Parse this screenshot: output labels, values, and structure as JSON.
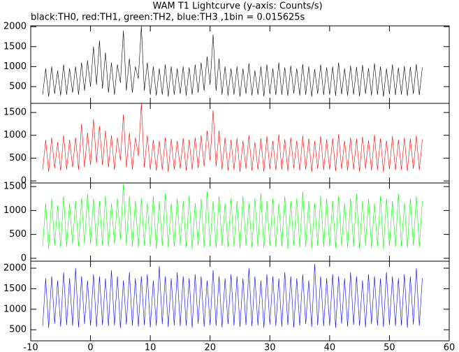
{
  "title": "WAM T1 Lightcurve (y-axis: Counts/s)",
  "subtitle": "black:TH0, red:TH1, green:TH2, blue:TH3 ,1bin = 0.015625s",
  "chart_data": [
    {
      "type": "line",
      "color": "#000000",
      "xlim": [
        -10,
        60
      ],
      "ylim": [
        80,
        2020
      ],
      "yticks": [
        500,
        1000,
        1500,
        2000
      ],
      "x": [
        -8,
        -7.5,
        -7,
        -6.5,
        -6,
        -5.5,
        -5,
        -4.5,
        -4,
        -3.5,
        -3,
        -2.5,
        -2,
        -1.5,
        -1,
        -0.5,
        0,
        0.5,
        1,
        1.5,
        2,
        2.5,
        3,
        3.5,
        4,
        4.5,
        5,
        5.5,
        6,
        6.5,
        7,
        7.5,
        8,
        8.5,
        9,
        9.5,
        10,
        10.5,
        11,
        11.5,
        12,
        12.5,
        13,
        13.5,
        14,
        14.5,
        15,
        15.5,
        16,
        16.5,
        17,
        17.5,
        18,
        18.5,
        19,
        19.5,
        20,
        20.5,
        21,
        21.5,
        22,
        22.5,
        23,
        23.5,
        24,
        24.5,
        25,
        25.5,
        26,
        26.5,
        27,
        27.5,
        28,
        28.5,
        29,
        29.5,
        30,
        30.5,
        31,
        31.5,
        32,
        32.5,
        33,
        33.5,
        34,
        34.5,
        35,
        35.5,
        36,
        36.5,
        37,
        37.5,
        38,
        38.5,
        39,
        39.5,
        40,
        40.5,
        41,
        41.5,
        42,
        42.5,
        43,
        43.5,
        44,
        44.5,
        45,
        45.5,
        46,
        46.5,
        47,
        47.5,
        48,
        48.5,
        49,
        49.5,
        50,
        50.5,
        51,
        51.5,
        52,
        52.5,
        53,
        53.5,
        54,
        54.5,
        55,
        55.5
      ],
      "values": [
        300,
        950,
        250,
        1000,
        320,
        900,
        280,
        1050,
        300,
        950,
        350,
        1000,
        300,
        1100,
        400,
        1150,
        500,
        1500,
        550,
        1650,
        450,
        1350,
        350,
        1100,
        300,
        1050,
        600,
        1900,
        400,
        1200,
        350,
        1000,
        700,
        2010,
        400,
        1100,
        300,
        1000,
        280,
        950,
        300,
        1050,
        250,
        1000,
        300,
        950,
        320,
        1000,
        280,
        980,
        300,
        1050,
        350,
        1100,
        400,
        1250,
        550,
        1800,
        400,
        1200,
        300,
        1000,
        280,
        950,
        300,
        1000,
        250,
        950,
        320,
        1080,
        280,
        900,
        300,
        1000,
        260,
        1050,
        310,
        950,
        290,
        1100,
        300,
        980,
        270,
        1020,
        330,
        950,
        280,
        1060,
        300,
        1000,
        250,
        940,
        320,
        1050,
        290,
        980,
        300,
        1000,
        270,
        1100,
        310,
        950,
        280,
        1020,
        300,
        990,
        260,
        1040,
        320,
        960,
        280,
        1080,
        300,
        1000,
        250,
        950,
        310,
        1050,
        290,
        970,
        300,
        1010,
        270,
        990,
        320,
        1060,
        290,
        980
      ]
    },
    {
      "type": "line",
      "color": "#ff0000",
      "xlim": [
        -10,
        60
      ],
      "ylim": [
        -45,
        1700
      ],
      "yticks": [
        0,
        500,
        1000,
        1500
      ],
      "x": [
        -8,
        -7.5,
        -7,
        -6.5,
        -6,
        -5.5,
        -5,
        -4.5,
        -4,
        -3.5,
        -3,
        -2.5,
        -2,
        -1.5,
        -1,
        -0.5,
        0,
        0.5,
        1,
        1.5,
        2,
        2.5,
        3,
        3.5,
        4,
        4.5,
        5,
        5.5,
        6,
        6.5,
        7,
        7.5,
        8,
        8.5,
        9,
        9.5,
        10,
        10.5,
        11,
        11.5,
        12,
        12.5,
        13,
        13.5,
        14,
        14.5,
        15,
        15.5,
        16,
        16.5,
        17,
        17.5,
        18,
        18.5,
        19,
        19.5,
        20,
        20.5,
        21,
        21.5,
        22,
        22.5,
        23,
        23.5,
        24,
        24.5,
        25,
        25.5,
        26,
        26.5,
        27,
        27.5,
        28,
        28.5,
        29,
        29.5,
        30,
        30.5,
        31,
        31.5,
        32,
        32.5,
        33,
        33.5,
        34,
        34.5,
        35,
        35.5,
        36,
        36.5,
        37,
        37.5,
        38,
        38.5,
        39,
        39.5,
        40,
        40.5,
        41,
        41.5,
        42,
        42.5,
        43,
        43.5,
        44,
        44.5,
        45,
        45.5,
        46,
        46.5,
        47,
        47.5,
        48,
        48.5,
        49,
        49.5,
        50,
        50.5,
        51,
        51.5,
        52,
        52.5,
        53,
        53.5,
        54,
        54.5,
        55,
        55.5
      ],
      "values": [
        250,
        900,
        200,
        950,
        280,
        850,
        230,
        1000,
        250,
        900,
        300,
        950,
        250,
        1250,
        300,
        1050,
        350,
        1350,
        400,
        1200,
        350,
        1100,
        300,
        1000,
        250,
        950,
        450,
        1450,
        300,
        1050,
        250,
        950,
        550,
        1700,
        300,
        1000,
        250,
        900,
        230,
        880,
        250,
        950,
        200,
        920,
        250,
        880,
        270,
        930,
        230,
        900,
        250,
        950,
        280,
        1000,
        320,
        1100,
        450,
        1550,
        320,
        1100,
        250,
        950,
        230,
        900,
        250,
        930,
        200,
        880,
        270,
        1000,
        230,
        850,
        250,
        930,
        210,
        980,
        260,
        880,
        240,
        1020,
        250,
        910,
        220,
        950,
        280,
        880,
        230,
        990,
        250,
        930,
        200,
        870,
        270,
        980,
        240,
        910,
        250,
        930,
        220,
        1020,
        260,
        880,
        230,
        950,
        250,
        920,
        210,
        970,
        270,
        890,
        230,
        1010,
        250,
        930,
        200,
        880,
        260,
        980,
        240,
        900,
        250,
        940,
        220,
        920,
        270,
        990,
        240,
        910
      ]
    },
    {
      "type": "line",
      "color": "#00ff00",
      "xlim": [
        -10,
        60
      ],
      "ylim": [
        -60,
        1575
      ],
      "yticks": [
        0,
        500,
        1000,
        1500
      ],
      "x": [
        -8,
        -7.5,
        -7,
        -6.5,
        -6,
        -5.5,
        -5,
        -4.5,
        -4,
        -3.5,
        -3,
        -2.5,
        -2,
        -1.5,
        -1,
        -0.5,
        0,
        0.5,
        1,
        1.5,
        2,
        2.5,
        3,
        3.5,
        4,
        4.5,
        5,
        5.5,
        6,
        6.5,
        7,
        7.5,
        8,
        8.5,
        9,
        9.5,
        10,
        10.5,
        11,
        11.5,
        12,
        12.5,
        13,
        13.5,
        14,
        14.5,
        15,
        15.5,
        16,
        16.5,
        17,
        17.5,
        18,
        18.5,
        19,
        19.5,
        20,
        20.5,
        21,
        21.5,
        22,
        22.5,
        23,
        23.5,
        24,
        24.5,
        25,
        25.5,
        26,
        26.5,
        27,
        27.5,
        28,
        28.5,
        29,
        29.5,
        30,
        30.5,
        31,
        31.5,
        32,
        32.5,
        33,
        33.5,
        34,
        34.5,
        35,
        35.5,
        36,
        36.5,
        37,
        37.5,
        38,
        38.5,
        39,
        39.5,
        40,
        40.5,
        41,
        41.5,
        42,
        42.5,
        43,
        43.5,
        44,
        44.5,
        45,
        45.5,
        46,
        46.5,
        47,
        47.5,
        48,
        48.5,
        49,
        49.5,
        50,
        50.5,
        51,
        51.5,
        52,
        52.5,
        53,
        53.5,
        54,
        54.5,
        55,
        55.5
      ],
      "values": [
        250,
        1150,
        200,
        1250,
        280,
        1100,
        230,
        1300,
        250,
        1150,
        300,
        1200,
        250,
        1250,
        300,
        1350,
        300,
        1250,
        250,
        1200,
        280,
        1300,
        250,
        1150,
        300,
        1250,
        400,
        1550,
        280,
        1300,
        250,
        1200,
        230,
        1250,
        280,
        1150,
        250,
        1300,
        200,
        1200,
        260,
        1350,
        230,
        1150,
        250,
        1250,
        280,
        1200,
        240,
        1300,
        200,
        1150,
        270,
        1250,
        230,
        1400,
        250,
        1200,
        220,
        1300,
        260,
        1150,
        240,
        1250,
        250,
        1200,
        210,
        1300,
        270,
        1150,
        230,
        1250,
        250,
        1350,
        220,
        1200,
        260,
        1250,
        240,
        1150,
        250,
        1300,
        200,
        1200,
        280,
        1250,
        230,
        1400,
        250,
        1200,
        210,
        1150,
        270,
        1300,
        240,
        1250,
        250,
        1200,
        220,
        1300,
        260,
        1150,
        230,
        1250,
        250,
        1350,
        210,
        1200,
        270,
        1250,
        230,
        1150,
        250,
        1300,
        200,
        1250,
        260,
        1200,
        240,
        1350,
        250,
        1150,
        220,
        1250,
        270,
        1300,
        240,
        1200
      ]
    },
    {
      "type": "line",
      "color": "#0000ff",
      "xlim": [
        -10,
        60
      ],
      "ylim": [
        230,
        2170
      ],
      "yticks": [
        500,
        1000,
        1500,
        2000
      ],
      "xticks": [
        -10,
        0,
        10,
        20,
        30,
        40,
        50,
        60
      ],
      "x": [
        -8,
        -7.5,
        -7,
        -6.5,
        -6,
        -5.5,
        -5,
        -4.5,
        -4,
        -3.5,
        -3,
        -2.5,
        -2,
        -1.5,
        -1,
        -0.5,
        0,
        0.5,
        1,
        1.5,
        2,
        2.5,
        3,
        3.5,
        4,
        4.5,
        5,
        5.5,
        6,
        6.5,
        7,
        7.5,
        8,
        8.5,
        9,
        9.5,
        10,
        10.5,
        11,
        11.5,
        12,
        12.5,
        13,
        13.5,
        14,
        14.5,
        15,
        15.5,
        16,
        16.5,
        17,
        17.5,
        18,
        18.5,
        19,
        19.5,
        20,
        20.5,
        21,
        21.5,
        22,
        22.5,
        23,
        23.5,
        24,
        24.5,
        25,
        25.5,
        26,
        26.5,
        27,
        27.5,
        28,
        28.5,
        29,
        29.5,
        30,
        30.5,
        31,
        31.5,
        32,
        32.5,
        33,
        33.5,
        34,
        34.5,
        35,
        35.5,
        36,
        36.5,
        37,
        37.5,
        38,
        38.5,
        39,
        39.5,
        40,
        40.5,
        41,
        41.5,
        42,
        42.5,
        43,
        43.5,
        44,
        44.5,
        45,
        45.5,
        46,
        46.5,
        47,
        47.5,
        48,
        48.5,
        49,
        49.5,
        50,
        50.5,
        51,
        51.5,
        52,
        52.5,
        53,
        53.5,
        54,
        54.5,
        55,
        55.5
      ],
      "values": [
        600,
        1750,
        550,
        1800,
        650,
        1700,
        580,
        1900,
        620,
        1750,
        600,
        2000,
        560,
        1800,
        640,
        1700,
        600,
        1850,
        570,
        1800,
        620,
        1750,
        590,
        1950,
        610,
        1800,
        550,
        1700,
        630,
        1900,
        600,
        1750,
        580,
        1800,
        620,
        1850,
        560,
        1700,
        600,
        2050,
        640,
        1800,
        570,
        1750,
        610,
        1900,
        590,
        1800,
        600,
        1750,
        550,
        1850,
        650,
        1800,
        580,
        1700,
        620,
        1950,
        600,
        1800,
        560,
        1750,
        640,
        1850,
        600,
        1800,
        570,
        1750,
        620,
        2000,
        590,
        1800,
        610,
        1700,
        550,
        1850,
        630,
        1800,
        600,
        1750,
        580,
        1900,
        620,
        1800,
        560,
        1750,
        600,
        1850,
        640,
        1700,
        570,
        2100,
        610,
        1800,
        590,
        1750,
        600,
        1850,
        550,
        1800,
        650,
        1750,
        580,
        1900,
        620,
        1800,
        600,
        1700,
        560,
        1850,
        640,
        1800,
        600,
        1750,
        570,
        1900,
        620,
        1800,
        590,
        1750,
        610,
        1850,
        550,
        1800,
        630,
        2000,
        600,
        1750
      ]
    }
  ]
}
